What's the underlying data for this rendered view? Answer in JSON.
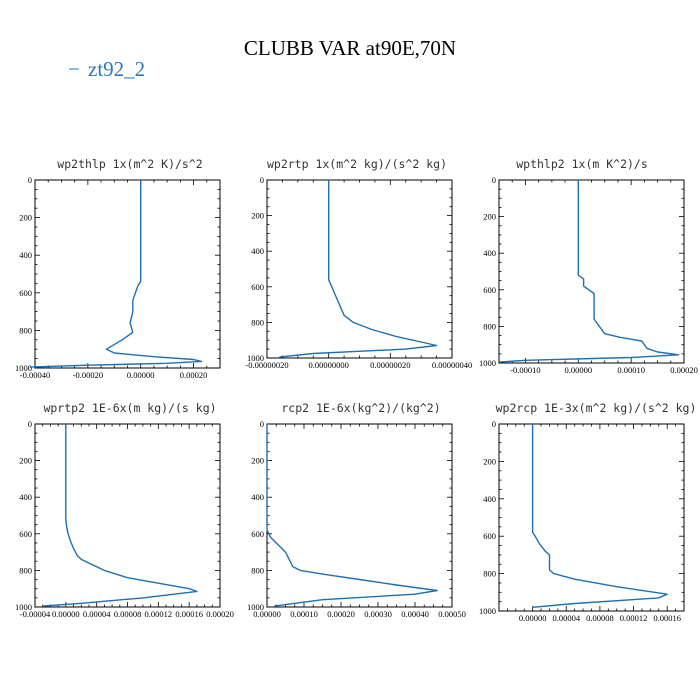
{
  "title": "CLUBB VAR at90E,70N",
  "legend": {
    "label": "zt92_2",
    "color": "#2a7ab8",
    "symbol": "−"
  },
  "line_color": "#1f6fb4",
  "chart_data": [
    {
      "type": "line",
      "title": "wp2thlp  1x(m^2 K)/s^2",
      "xlim": [
        -0.0004,
        0.0003
      ],
      "ylim": [
        0,
        1000
      ],
      "y_inverted": true,
      "xticks": [
        -0.0004,
        -0.0002,
        0.0,
        0.0002
      ],
      "xtick_labels": [
        "-0.00040",
        "-0.00020",
        "0.00000",
        "0.00020"
      ],
      "yticks": [
        0,
        200,
        400,
        600,
        800,
        1000
      ],
      "series": [
        {
          "x": [
            0.0,
            0.0,
            0.0,
            -1e-05,
            -2e-05,
            -3e-05,
            -3e-05,
            -4e-05,
            -3e-05,
            -7e-05,
            -0.00013,
            -0.0001,
            5e-05,
            0.0002,
            0.00023,
            0.0001,
            -0.0002,
            -0.00042
          ],
          "y": [
            0,
            400,
            540,
            560,
            600,
            640,
            700,
            760,
            810,
            850,
            900,
            920,
            940,
            955,
            965,
            975,
            985,
            995
          ]
        }
      ]
    },
    {
      "type": "line",
      "title": "wp2rtp  1x(m^2 kg)/(s^2 kg)",
      "xlim": [
        -2e-07,
        4e-07
      ],
      "ylim": [
        0,
        1000
      ],
      "y_inverted": true,
      "xticks": [
        -2e-07,
        0.0,
        2e-07,
        4e-07
      ],
      "xtick_labels": [
        "-0.00000020",
        "0.00000000",
        "0.00000020",
        "0.00000040"
      ],
      "yticks": [
        0,
        200,
        400,
        600,
        800,
        1000
      ],
      "series": [
        {
          "x": [
            0.0,
            0.0,
            0.0,
            1e-08,
            2e-08,
            3e-08,
            4e-08,
            5e-08,
            8e-08,
            1.4e-07,
            2.2e-07,
            3e-07,
            3.5e-07,
            2.5e-07,
            -5e-08,
            -1.6e-07
          ],
          "y": [
            0,
            400,
            560,
            600,
            640,
            680,
            720,
            760,
            800,
            840,
            880,
            910,
            930,
            950,
            975,
            995
          ]
        }
      ]
    },
    {
      "type": "line",
      "title": "wpthlp2  1x(m K^2)/s",
      "xlim": [
        -0.00015,
        0.0002
      ],
      "ylim": [
        0,
        1000
      ],
      "y_inverted": true,
      "xticks": [
        -0.0001,
        0.0,
        0.0001,
        0.0002
      ],
      "xtick_labels": [
        "-0.00010",
        "0.00000",
        "0.00010",
        "0.00020"
      ],
      "yticks": [
        0,
        200,
        400,
        600,
        800,
        1000
      ],
      "series": [
        {
          "x": [
            0.0,
            0.0,
            0.0,
            1e-05,
            1e-05,
            1e-05,
            2e-05,
            3e-05,
            3e-05,
            3e-05,
            3e-05,
            4e-05,
            5e-05,
            8e-05,
            0.00012,
            0.00013,
            0.00015,
            0.00019,
            0.0001,
            -0.0001,
            -0.00015
          ],
          "y": [
            0,
            400,
            520,
            540,
            560,
            580,
            600,
            620,
            660,
            700,
            760,
            800,
            840,
            860,
            880,
            920,
            940,
            955,
            970,
            985,
            995
          ]
        }
      ]
    },
    {
      "type": "line",
      "title": "wprtp2  1E-6x(m kg)/(s kg)",
      "xlim": [
        -4e-05,
        0.0002
      ],
      "ylim": [
        0,
        1000
      ],
      "y_inverted": true,
      "xticks": [
        -4e-05,
        0.0,
        4e-05,
        8e-05,
        0.00012,
        0.00016,
        0.0002
      ],
      "xtick_labels": [
        "-0.00004",
        "0.00000",
        "0.00004",
        "0.00008",
        "0.00012",
        "0.00016",
        "0.00020"
      ],
      "yticks": [
        0,
        200,
        400,
        600,
        800,
        1000
      ],
      "series": [
        {
          "x": [
            0.0,
            0.0,
            0.0,
            1e-06,
            3e-06,
            6e-06,
            1e-05,
            1.5e-05,
            2e-05,
            3e-05,
            5e-05,
            8e-05,
            0.00012,
            0.00016,
            0.00017,
            0.0001,
            2e-05,
            -3e-05
          ],
          "y": [
            0,
            400,
            520,
            560,
            600,
            640,
            680,
            720,
            740,
            760,
            800,
            840,
            870,
            900,
            915,
            950,
            980,
            995
          ]
        }
      ]
    },
    {
      "type": "line",
      "title": "rcp2  1E-6x(kg^2)/(kg^2)",
      "xlim": [
        0.0,
        0.0005
      ],
      "ylim": [
        0,
        1000
      ],
      "y_inverted": true,
      "xticks": [
        0.0,
        0.0001,
        0.0002,
        0.0003,
        0.0004,
        0.0005
      ],
      "xtick_labels": [
        "0.00000",
        "0.00010",
        "0.00020",
        "0.00030",
        "0.00040",
        "0.00050"
      ],
      "yticks": [
        0,
        200,
        400,
        600,
        800,
        1000
      ],
      "series": [
        {
          "x": [
            0.0,
            0.0,
            0.0,
            1e-05,
            3e-05,
            5e-05,
            6e-05,
            7e-05,
            9e-05,
            0.00015,
            0.00025,
            0.00035,
            0.00046,
            0.0004,
            0.00015,
            2e-05
          ],
          "y": [
            0,
            400,
            580,
            620,
            660,
            700,
            740,
            780,
            800,
            820,
            850,
            880,
            910,
            930,
            960,
            995
          ]
        }
      ]
    },
    {
      "type": "line",
      "title": "wp2rcp  1E-3x(m^2 kg)/(s^2 kg)",
      "xlim": [
        -4e-05,
        0.00018
      ],
      "ylim": [
        0,
        1000
      ],
      "y_inverted": true,
      "xticks": [
        0.0,
        4e-05,
        8e-05,
        0.00012,
        0.00016
      ],
      "xtick_labels": [
        "0.00000",
        "0.00004",
        "0.00008",
        "0.00012",
        "0.00016"
      ],
      "yticks": [
        0,
        200,
        400,
        600,
        800,
        1000
      ],
      "series": [
        {
          "x": [
            0.0,
            0.0,
            0.0,
            3e-06,
            8e-06,
            1.5e-05,
            2e-05,
            2e-05,
            2e-05,
            2.5e-05,
            5e-05,
            0.0001,
            0.00016,
            0.00015,
            5e-05,
            0.0
          ],
          "y": [
            0,
            400,
            580,
            600,
            640,
            680,
            700,
            740,
            780,
            800,
            830,
            870,
            910,
            930,
            960,
            980
          ]
        }
      ]
    }
  ]
}
